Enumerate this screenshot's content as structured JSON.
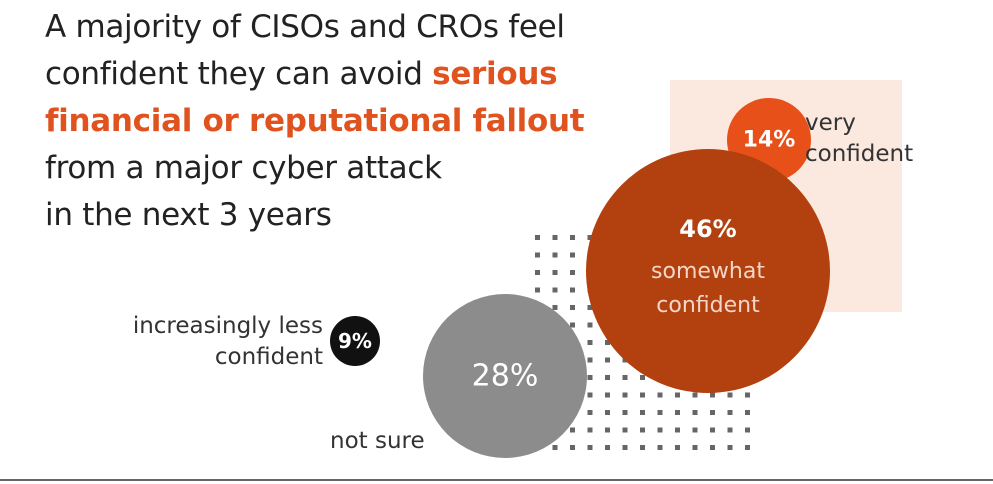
{
  "chart_data": {
    "type": "bubble",
    "title_lines": [
      {
        "text": "A majority of CISOs and CROs feel"
      },
      {
        "text": "confident they can avoid ",
        "highlight": "serious"
      },
      {
        "highlight": "financial or reputational fallout"
      },
      {
        "text": "from a major cyber attack"
      },
      {
        "text": "in the next 3 years"
      }
    ],
    "highlight_color": "#e0531e",
    "categories": [
      "very confident",
      "somewhat confident",
      "increasingly less confident",
      "not sure"
    ],
    "values": [
      14,
      46,
      9,
      28
    ],
    "value_labels": [
      "14%",
      "46%",
      "9%",
      "28%"
    ],
    "colors": [
      "#e8501a",
      "#b3410f",
      "#111111",
      "#8c8c8c"
    ]
  }
}
